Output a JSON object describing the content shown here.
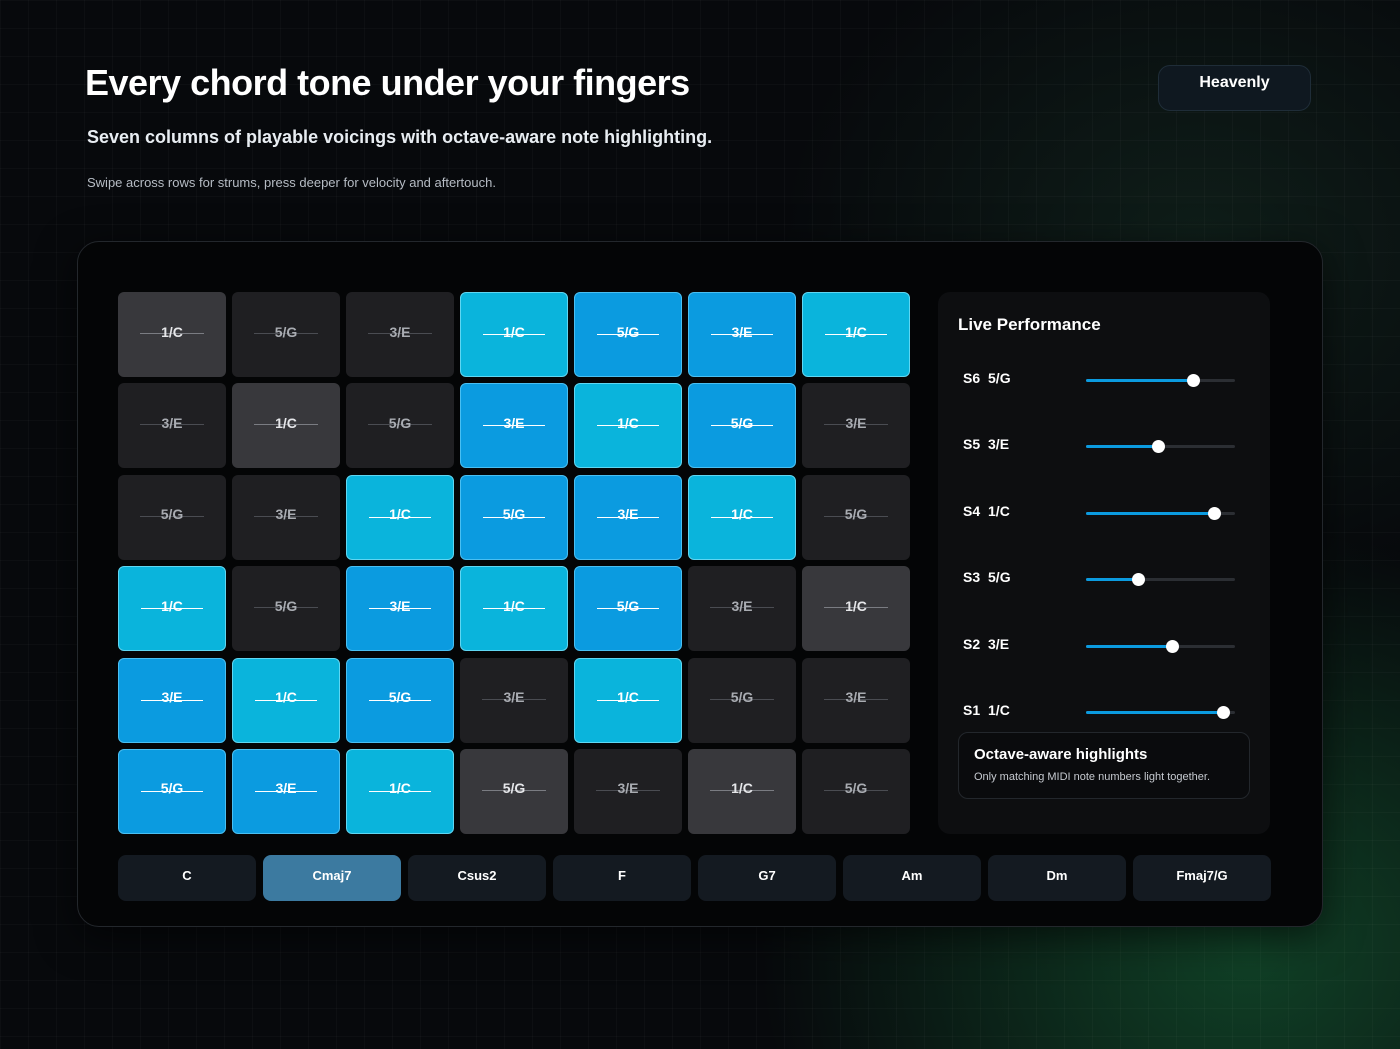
{
  "header": {
    "title": "Every chord tone under your fingers",
    "subtitle": "Seven columns of playable voicings with octave-aware note highlighting.",
    "hint": "Swipe across rows for strums, press deeper for velocity and aftertouch."
  },
  "theme_button": {
    "label": "Heavenly"
  },
  "pad_grid": {
    "rows": [
      [
        {
          "label": "1/C",
          "state": "dim"
        },
        {
          "label": "5/G",
          "state": "off"
        },
        {
          "label": "3/E",
          "state": "off"
        },
        {
          "label": "1/C",
          "state": "cyan"
        },
        {
          "label": "5/G",
          "state": "blue"
        },
        {
          "label": "3/E",
          "state": "blue"
        },
        {
          "label": "1/C",
          "state": "cyan"
        }
      ],
      [
        {
          "label": "3/E",
          "state": "off"
        },
        {
          "label": "1/C",
          "state": "dim"
        },
        {
          "label": "5/G",
          "state": "off"
        },
        {
          "label": "3/E",
          "state": "blue"
        },
        {
          "label": "1/C",
          "state": "cyan"
        },
        {
          "label": "5/G",
          "state": "blue"
        },
        {
          "label": "3/E",
          "state": "off"
        }
      ],
      [
        {
          "label": "5/G",
          "state": "off"
        },
        {
          "label": "3/E",
          "state": "off"
        },
        {
          "label": "1/C",
          "state": "cyan"
        },
        {
          "label": "5/G",
          "state": "blue"
        },
        {
          "label": "3/E",
          "state": "blue"
        },
        {
          "label": "1/C",
          "state": "cyan"
        },
        {
          "label": "5/G",
          "state": "off"
        }
      ],
      [
        {
          "label": "1/C",
          "state": "cyan"
        },
        {
          "label": "5/G",
          "state": "off"
        },
        {
          "label": "3/E",
          "state": "blue"
        },
        {
          "label": "1/C",
          "state": "cyan"
        },
        {
          "label": "5/G",
          "state": "blue"
        },
        {
          "label": "3/E",
          "state": "off"
        },
        {
          "label": "1/C",
          "state": "dim"
        }
      ],
      [
        {
          "label": "3/E",
          "state": "blue"
        },
        {
          "label": "1/C",
          "state": "cyan"
        },
        {
          "label": "5/G",
          "state": "blue"
        },
        {
          "label": "3/E",
          "state": "off"
        },
        {
          "label": "1/C",
          "state": "cyan"
        },
        {
          "label": "5/G",
          "state": "off"
        },
        {
          "label": "3/E",
          "state": "off"
        }
      ],
      [
        {
          "label": "5/G",
          "state": "blue"
        },
        {
          "label": "3/E",
          "state": "blue"
        },
        {
          "label": "1/C",
          "state": "cyan"
        },
        {
          "label": "5/G",
          "state": "dim"
        },
        {
          "label": "3/E",
          "state": "off"
        },
        {
          "label": "1/C",
          "state": "dim"
        },
        {
          "label": "5/G",
          "state": "off"
        }
      ]
    ]
  },
  "live_panel": {
    "title": "Live Performance",
    "sliders": [
      {
        "string": "S6",
        "note": "5/G",
        "level": 0.72
      },
      {
        "string": "S5",
        "note": "3/E",
        "level": 0.48
      },
      {
        "string": "S4",
        "note": "1/C",
        "level": 0.86
      },
      {
        "string": "S3",
        "note": "5/G",
        "level": 0.35
      },
      {
        "string": "S2",
        "note": "3/E",
        "level": 0.58
      },
      {
        "string": "S1",
        "note": "1/C",
        "level": 0.92
      }
    ],
    "info": {
      "title": "Octave-aware highlights",
      "text": "Only matching MIDI note numbers light together."
    }
  },
  "chord_bar": {
    "active": "Cmaj7",
    "chords": [
      "C",
      "Cmaj7",
      "Csus2",
      "F",
      "G7",
      "Am",
      "Dm",
      "Fmaj7/G"
    ]
  },
  "colors": {
    "accent_cyan": "#0ab4dc",
    "accent_blue": "#0b9be0",
    "active_chord": "#3c7aa0"
  }
}
